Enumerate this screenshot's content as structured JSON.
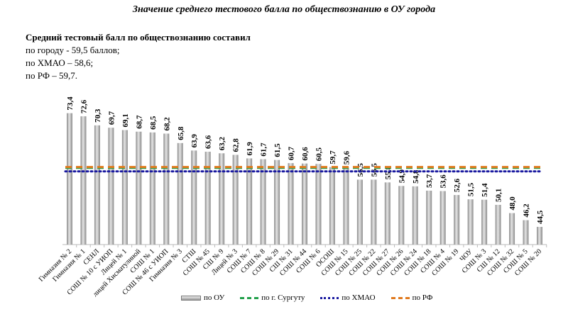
{
  "title": "Значение среднего тестового балла по обществознанию в ОУ города",
  "summary": {
    "head": "Средний тестовый балл по обществознанию составил",
    "lines": [
      "по городу - 59,5 баллов;",
      "по ХМАО – 58,6;",
      "по РФ – 59,7."
    ]
  },
  "chart_data": {
    "type": "bar",
    "title": "Значение среднего тестового балла по обществознанию в ОУ города",
    "categories": [
      "Гимназия № 2",
      "Гимназия № 1",
      "СЕНЛ",
      "СОШ № 10 с УИОП",
      "Лицей № 1",
      "лицей Хисматулиной",
      "СОШ № 1",
      "СОШ № 46 с УИОП",
      "Гимназия № 3",
      "СТШ",
      "СОШ № 45",
      "СШ № 9",
      "Лицей № 3",
      "СОШ № 7",
      "СОШ № 8",
      "СОШ № 29",
      "СШ № 31",
      "СОШ № 44",
      "СОШ № 6",
      "ОСОШ",
      "СОШ № 15",
      "СОШ № 25",
      "СОШ № 22",
      "СОШ № 27",
      "СОШ № 26",
      "СОШ № 24",
      "СОШ № 18",
      "СОШ № 4",
      "СОШ № 19",
      "ЧОУ",
      "СОШ № 3",
      "СШ № 12",
      "СОШ № 32",
      "СОШ № 5",
      "СОШ № 20"
    ],
    "series": [
      {
        "name": "по ОУ",
        "type": "bar",
        "color": "#a6a6a6",
        "values": [
          73.4,
          72.6,
          70.3,
          69.7,
          69.1,
          68.7,
          68.5,
          68.2,
          65.8,
          63.9,
          63.6,
          63.2,
          62.8,
          61.9,
          61.7,
          61.5,
          60.7,
          60.6,
          60.5,
          59.7,
          59.6,
          56.5,
          56.5,
          55.8,
          54.9,
          54.8,
          53.7,
          53.6,
          52.6,
          51.5,
          51.4,
          50.1,
          48.0,
          46.2,
          44.5
        ]
      },
      {
        "name": "по г. Сургуту",
        "type": "line",
        "style": "dashed",
        "color": "#22a04b",
        "value": 59.5
      },
      {
        "name": "по ХМАО",
        "type": "line",
        "style": "dotted",
        "color": "#1a1aa0",
        "value": 58.6
      },
      {
        "name": "по РФ",
        "type": "line",
        "style": "dashed",
        "color": "#e07a1f",
        "value": 59.7
      }
    ],
    "ylim": [
      40,
      80
    ],
    "grid": false,
    "legend": "bottom"
  }
}
